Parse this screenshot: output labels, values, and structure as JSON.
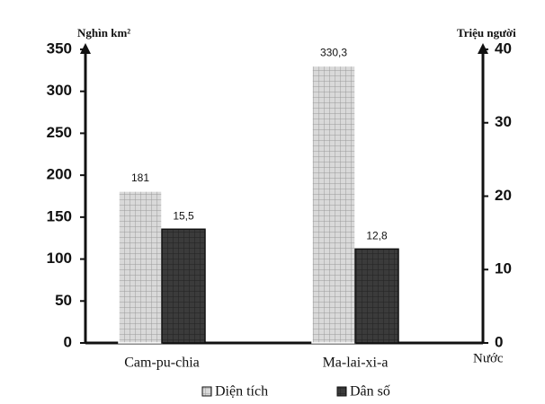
{
  "chart_data": {
    "type": "bar",
    "y_label": "Nghìn km²",
    "y2_label": "Triệu người",
    "x_label": "Nước",
    "categories": [
      "Cam-pu-chia",
      "Ma-lai-xi-a"
    ],
    "series": [
      {
        "name": "Diện tích",
        "color": "#d9d9d9",
        "values": [
          181,
          330.3
        ],
        "value_labels": [
          "181",
          "330,3"
        ]
      },
      {
        "name": "Dân số",
        "color": "#3b3b3b",
        "values": [
          15.5,
          12.8
        ],
        "value_labels": [
          "15,5",
          "12,8"
        ],
        "axis": "y2"
      }
    ],
    "ylim": [
      0,
      350
    ],
    "yticks": [
      0,
      50,
      100,
      150,
      200,
      250,
      300,
      350
    ],
    "y2lim": [
      0,
      40
    ],
    "y2ticks": [
      0,
      10,
      20,
      30,
      40
    ],
    "legend": "bottom"
  }
}
